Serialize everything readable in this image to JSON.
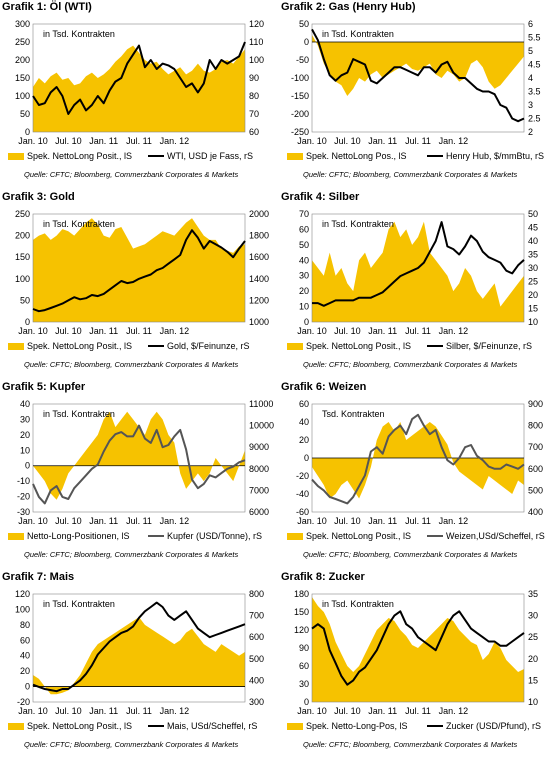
{
  "colors": {
    "area": "#F6C200",
    "line": "#000000",
    "line_grey": "#555555"
  },
  "chart_data": [
    {
      "type": "area",
      "title": "Grafik 1: Öl (WTI)",
      "note": "in Tsd. Kontrakten",
      "x_ticks": [
        "Jan. 10",
        "Jul. 10",
        "Jan. 11",
        "Jul. 11",
        "Jan. 12"
      ],
      "y_left": {
        "ticks": [
          "0",
          "50",
          "100",
          "150",
          "200",
          "250",
          "300"
        ],
        "ylim": [
          0,
          300
        ]
      },
      "y_right": {
        "ticks": [
          "60",
          "70",
          "80",
          "90",
          "100",
          "110",
          "120"
        ],
        "ylim": [
          60,
          120
        ]
      },
      "series": [
        {
          "name": "Spek. NettoLong Posit., lS",
          "axis": "left",
          "kind": "area",
          "values": [
            125,
            150,
            135,
            155,
            165,
            145,
            150,
            130,
            135,
            155,
            165,
            150,
            160,
            175,
            195,
            210,
            230,
            240,
            220,
            200,
            190,
            195,
            175,
            160,
            170,
            180,
            160,
            170,
            190,
            170,
            165,
            175,
            195,
            200,
            190,
            210,
            230
          ]
        },
        {
          "name": "WTI, USD je Fass, rS",
          "axis": "right",
          "kind": "line",
          "values": [
            80,
            75,
            76,
            82,
            85,
            80,
            70,
            75,
            78,
            72,
            75,
            80,
            76,
            83,
            88,
            90,
            98,
            103,
            108,
            96,
            100,
            95,
            98,
            97,
            95,
            90,
            85,
            87,
            82,
            87,
            100,
            95,
            100,
            98,
            100,
            102,
            110
          ]
        }
      ],
      "source": "Quelle: CFTC; Bloomberg, Commerzbank Corporates & Markets"
    },
    {
      "type": "area",
      "title": "Grafik 2: Gas (Henry Hub)",
      "note": "in Tsd. Kontrakten",
      "x_ticks": [
        "Jan. 10",
        "Jul. 10",
        "Jan. 11",
        "Jul. 11",
        "Jan. 12"
      ],
      "y_left": {
        "ticks": [
          "-250",
          "-200",
          "-150",
          "-100",
          "-50",
          "0",
          "50"
        ],
        "ylim": [
          -250,
          50
        ]
      },
      "y_right": {
        "ticks": [
          "2",
          "2.5",
          "3",
          "3.5",
          "4",
          "4.5",
          "5",
          "5.5",
          "6"
        ],
        "ylim": [
          2,
          6
        ]
      },
      "series": [
        {
          "name": "Spek. NettoLong Pos., lS",
          "axis": "left",
          "kind": "area",
          "values": [
            20,
            -10,
            -60,
            -90,
            -110,
            -120,
            -150,
            -130,
            -100,
            -110,
            -90,
            -80,
            -100,
            -90,
            -80,
            -70,
            -60,
            -75,
            -80,
            -70,
            -60,
            -90,
            -100,
            -80,
            -90,
            -110,
            -100,
            -60,
            -50,
            -70,
            -110,
            -130,
            -120,
            -100,
            -80,
            -60,
            -40
          ]
        },
        {
          "name": "Henry Hub, $/mmBtu, rS",
          "axis": "right",
          "kind": "line",
          "values": [
            5.8,
            5.4,
            4.7,
            4.1,
            3.9,
            4.1,
            4.2,
            4.7,
            4.6,
            4.5,
            3.9,
            3.8,
            4.0,
            4.2,
            4.4,
            4.4,
            4.3,
            4.2,
            4.1,
            4.4,
            4.4,
            4.2,
            4.5,
            4.6,
            4.2,
            4.0,
            4.0,
            3.8,
            3.6,
            3.5,
            3.5,
            3.4,
            3.0,
            2.9,
            2.5,
            2.4,
            2.5
          ]
        }
      ],
      "source": "Quelle: CFTC; Bloomberg, Commerzbank Corporates & Markets"
    },
    {
      "type": "area",
      "title": "Grafik 3: Gold",
      "note": "in Tsd. Kontrakten",
      "x_ticks": [
        "Jan. 10",
        "Jul. 10",
        "Jan. 11",
        "Jul. 11",
        "Jan. 12"
      ],
      "y_left": {
        "ticks": [
          "0",
          "50",
          "100",
          "150",
          "200",
          "250"
        ],
        "ylim": [
          0,
          250
        ]
      },
      "y_right": {
        "ticks": [
          "1000",
          "1200",
          "1400",
          "1600",
          "1800",
          "2000"
        ],
        "ylim": [
          1000,
          2000
        ]
      },
      "series": [
        {
          "name": "Spek. NettoLong Posit., lS",
          "axis": "left",
          "kind": "area",
          "values": [
            190,
            200,
            205,
            190,
            200,
            215,
            210,
            200,
            215,
            230,
            240,
            225,
            200,
            195,
            215,
            220,
            195,
            170,
            175,
            180,
            190,
            200,
            210,
            205,
            200,
            215,
            230,
            240,
            220,
            200,
            190,
            190,
            170,
            165,
            160,
            175,
            180
          ]
        },
        {
          "name": "Gold, $/Feinunze, rS",
          "axis": "right",
          "kind": "line",
          "values": [
            1120,
            1100,
            1110,
            1130,
            1150,
            1170,
            1200,
            1230,
            1210,
            1220,
            1250,
            1240,
            1260,
            1300,
            1340,
            1380,
            1360,
            1370,
            1400,
            1420,
            1440,
            1480,
            1500,
            1540,
            1580,
            1620,
            1760,
            1850,
            1780,
            1680,
            1750,
            1720,
            1690,
            1650,
            1600,
            1680,
            1750
          ]
        }
      ],
      "source": "Quelle: CFTC; Bloomberg, Commerzbank Corporates & Markets"
    },
    {
      "type": "area",
      "title": "Grafik 4: Silber",
      "note": "in Tsd. Kontrakten",
      "x_ticks": [
        "Jan. 10",
        "Jul. 10",
        "Jan. 11",
        "Jul. 11",
        "Jan. 12"
      ],
      "y_left": {
        "ticks": [
          "0",
          "10",
          "20",
          "30",
          "40",
          "50",
          "60",
          "70"
        ],
        "ylim": [
          0,
          70
        ]
      },
      "y_right": {
        "ticks": [
          "10",
          "15",
          "20",
          "25",
          "30",
          "35",
          "40",
          "45",
          "50"
        ],
        "ylim": [
          10,
          50
        ]
      },
      "series": [
        {
          "name": "Spek. NettoLong Posit., lS",
          "axis": "left",
          "kind": "area",
          "values": [
            40,
            35,
            30,
            45,
            30,
            35,
            25,
            20,
            40,
            45,
            35,
            40,
            45,
            60,
            65,
            55,
            60,
            50,
            55,
            65,
            45,
            40,
            35,
            30,
            20,
            25,
            35,
            30,
            20,
            15,
            20,
            25,
            10,
            15,
            20,
            25,
            30
          ]
        },
        {
          "name": "Silber, $/Feinunze, rS",
          "axis": "right",
          "kind": "line",
          "values": [
            17,
            17,
            16,
            17,
            18,
            18,
            18,
            18,
            19,
            19,
            19,
            20,
            21,
            23,
            25,
            27,
            28,
            29,
            30,
            32,
            36,
            40,
            47,
            38,
            37,
            35,
            38,
            42,
            40,
            36,
            34,
            33,
            32,
            29,
            28,
            31,
            33
          ]
        }
      ],
      "source": "Quelle: CFTC; Bloomberg, Commerzbank Corporates & Markets"
    },
    {
      "type": "area",
      "title": "Grafik 5: Kupfer",
      "note": "in Tsd. Kontrakten",
      "x_ticks": [
        "Jan. 10",
        "Jul. 10",
        "Jan. 11",
        "Jul. 11",
        "Jan. 12"
      ],
      "y_left": {
        "ticks": [
          "-30",
          "-20",
          "-10",
          "0",
          "10",
          "20",
          "30",
          "40"
        ],
        "ylim": [
          -30,
          40
        ]
      },
      "y_right": {
        "ticks": [
          "6000",
          "7000",
          "8000",
          "9000",
          "10000",
          "11000"
        ],
        "ylim": [
          6000,
          11000
        ]
      },
      "series": [
        {
          "name": "Netto-Long-Positionen, lS",
          "axis": "left",
          "kind": "area",
          "values": [
            0,
            -5,
            -10,
            -18,
            -22,
            -15,
            -5,
            0,
            5,
            10,
            15,
            20,
            30,
            35,
            25,
            30,
            35,
            30,
            25,
            20,
            30,
            35,
            30,
            20,
            15,
            -5,
            -15,
            -10,
            -5,
            -10,
            -5,
            5,
            0,
            -5,
            -10,
            0,
            10
          ]
        },
        {
          "name": "Kupfer (USD/Tonne), rS",
          "axis": "right",
          "kind": "line",
          "values": [
            7300,
            6700,
            6400,
            7000,
            7200,
            6700,
            6600,
            7100,
            7400,
            7700,
            8000,
            8200,
            8800,
            9300,
            9600,
            9700,
            9500,
            9500,
            10000,
            9400,
            9200,
            9800,
            9000,
            9100,
            9500,
            9800,
            8900,
            7500,
            7100,
            7300,
            7700,
            7600,
            7800,
            8000,
            8100,
            8300,
            8400
          ]
        }
      ],
      "source": "Quelle: CFTC; Bloomberg, Commerzbank Corporates & Markets"
    },
    {
      "type": "area",
      "title": "Grafik 6: Weizen",
      "note": "Tsd. Kontrakten",
      "x_ticks": [
        "Jan. 10",
        "Jul. 10",
        "Jan. 11",
        "Jul. 11",
        "Jan. 12"
      ],
      "y_left": {
        "ticks": [
          "-60",
          "-40",
          "-20",
          "0",
          "20",
          "40",
          "60"
        ],
        "ylim": [
          -60,
          60
        ]
      },
      "y_right": {
        "ticks": [
          "400",
          "500",
          "600",
          "700",
          "800",
          "900"
        ],
        "ylim": [
          400,
          900
        ]
      },
      "series": [
        {
          "name": "Spek. NettoLong Posit., lS",
          "axis": "left",
          "kind": "area",
          "values": [
            -10,
            -20,
            -30,
            -45,
            -40,
            -30,
            -25,
            -35,
            -45,
            -30,
            -10,
            20,
            35,
            40,
            30,
            40,
            20,
            25,
            30,
            35,
            40,
            35,
            25,
            15,
            -5,
            -15,
            -20,
            -25,
            -30,
            -35,
            -20,
            -25,
            -30,
            -35,
            -40,
            -25,
            -30
          ]
        },
        {
          "name": "Weizen,USd/Scheffel, rS",
          "axis": "right",
          "kind": "line",
          "values": [
            550,
            520,
            500,
            470,
            460,
            450,
            440,
            470,
            520,
            570,
            680,
            700,
            670,
            750,
            780,
            800,
            760,
            830,
            850,
            800,
            760,
            780,
            700,
            640,
            620,
            650,
            700,
            710,
            660,
            640,
            610,
            600,
            600,
            620,
            610,
            600,
            620
          ]
        }
      ],
      "source": "Quelle: CFTC; Bloomberg, Commerzbank Corporates & Markets"
    },
    {
      "type": "area",
      "title": "Grafik 7: Mais",
      "note": "in Tsd. Kontrakten",
      "x_ticks": [
        "Jan. 10",
        "Jul. 10",
        "Jan. 11",
        "Jul. 11",
        "Jan. 12"
      ],
      "y_left": {
        "ticks": [
          "-20",
          "0",
          "20",
          "40",
          "60",
          "80",
          "100",
          "120"
        ],
        "ylim": [
          -20,
          120
        ]
      },
      "y_right": {
        "ticks": [
          "300",
          "400",
          "500",
          "600",
          "700",
          "800"
        ],
        "ylim": [
          300,
          800
        ]
      },
      "series": [
        {
          "name": "Spek. NettoLong Posit., lS",
          "axis": "left",
          "kind": "area",
          "values": [
            15,
            10,
            0,
            -10,
            -10,
            -8,
            -5,
            5,
            15,
            30,
            45,
            55,
            60,
            65,
            70,
            75,
            80,
            85,
            90,
            80,
            75,
            70,
            65,
            60,
            55,
            60,
            70,
            75,
            65,
            55,
            50,
            45,
            55,
            50,
            45,
            40,
            45
          ]
        },
        {
          "name": "Mais, USd/Scheffel, rS",
          "axis": "right",
          "kind": "line",
          "values": [
            380,
            370,
            360,
            355,
            350,
            360,
            360,
            380,
            400,
            430,
            470,
            520,
            550,
            580,
            600,
            620,
            630,
            650,
            690,
            720,
            740,
            760,
            740,
            700,
            680,
            700,
            720,
            680,
            640,
            620,
            600,
            610,
            620,
            630,
            640,
            650,
            660
          ]
        }
      ],
      "source": "Quelle: CFTC; Bloomberg, Commerzbank Corporates & Markets"
    },
    {
      "type": "area",
      "title": "Grafik 8: Zucker",
      "note": "in Tsd. Kontrakten",
      "x_ticks": [
        "Jan. 10",
        "Jul. 10",
        "Jan. 11",
        "Jul. 11",
        "Jan. 12"
      ],
      "y_left": {
        "ticks": [
          "0",
          "30",
          "60",
          "90",
          "120",
          "150",
          "180"
        ],
        "ylim": [
          0,
          180
        ]
      },
      "y_right": {
        "ticks": [
          "10",
          "15",
          "20",
          "25",
          "30",
          "35"
        ],
        "ylim": [
          10,
          35
        ]
      },
      "series": [
        {
          "name": "Spek. Netto-Long-Pos, lS",
          "axis": "left",
          "kind": "area",
          "values": [
            175,
            160,
            150,
            130,
            100,
            80,
            60,
            50,
            60,
            80,
            100,
            120,
            130,
            140,
            135,
            120,
            110,
            95,
            90,
            100,
            110,
            120,
            130,
            140,
            135,
            120,
            110,
            100,
            95,
            70,
            80,
            100,
            90,
            70,
            60,
            50,
            55
          ]
        },
        {
          "name": "Zucker (USD/Pfund), rS",
          "axis": "right",
          "kind": "line",
          "values": [
            27,
            28,
            27,
            22,
            19,
            16,
            14,
            15,
            17,
            18,
            20,
            22,
            25,
            28,
            30,
            31,
            28,
            27,
            25,
            24,
            23,
            22,
            25,
            28,
            30,
            31,
            29,
            27,
            26,
            25,
            24,
            24,
            23,
            23,
            24,
            25,
            26
          ]
        }
      ],
      "source": "Quelle: CFTC; Bloomberg, Commerzbank Corporates & Markets"
    }
  ]
}
